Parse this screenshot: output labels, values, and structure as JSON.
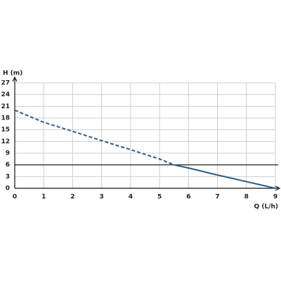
{
  "chart_data": {
    "type": "line",
    "x_label": "Q (L/h)",
    "y_label": "H (m)",
    "xlim": [
      0,
      9
    ],
    "xticks": [
      0,
      1,
      2,
      3,
      4,
      5,
      6,
      7,
      8,
      9
    ],
    "ylim": [
      0,
      27
    ],
    "yticks": [
      0,
      3,
      6,
      9,
      12,
      15,
      18,
      21,
      24,
      27
    ],
    "grid": true,
    "series": [
      {
        "color": "#2b5b86",
        "style": "dashed",
        "x": [
          0,
          1,
          2,
          3,
          4,
          5,
          5.5
        ],
        "values": [
          20,
          16.9,
          14.6,
          12.2,
          9.9,
          7.5,
          6
        ]
      },
      {
        "color": "#2b5b86",
        "style": "solid",
        "x": [
          5.5,
          6,
          7,
          8,
          9
        ],
        "values": [
          6,
          5.2,
          3.4,
          1.7,
          0
        ]
      }
    ],
    "reference_line": {
      "value": 6,
      "color": "#111111"
    }
  }
}
